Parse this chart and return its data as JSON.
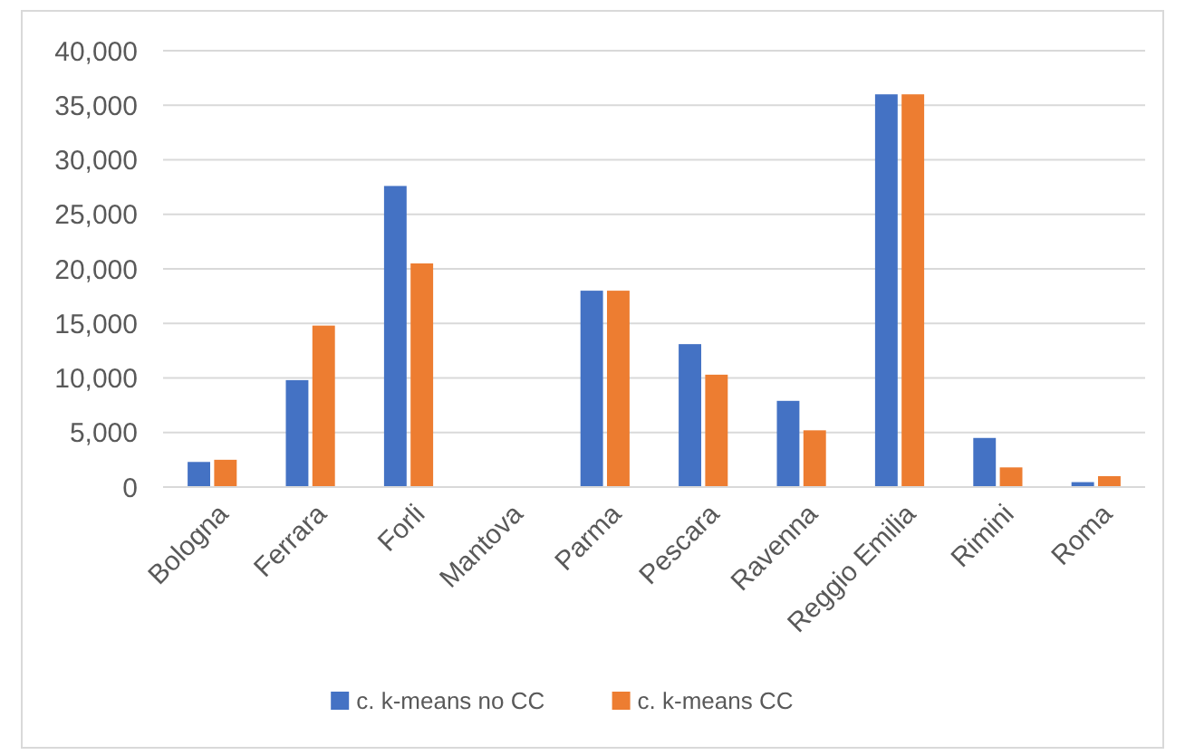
{
  "chart_data": {
    "type": "bar",
    "categories": [
      "Bologna",
      "Ferrara",
      "Forli",
      "Mantova",
      "Parma",
      "Pescara",
      "Ravenna",
      "Reggio Emilia",
      "Rimini",
      "Roma"
    ],
    "series": [
      {
        "name": "c. k-means no CC",
        "color": "#4472c4",
        "values": [
          2300,
          9800,
          27600,
          0,
          18000,
          13100,
          7900,
          36000,
          4500,
          450
        ]
      },
      {
        "name": "c. k-means CC",
        "color": "#ed7d31",
        "values": [
          2500,
          14800,
          20500,
          0,
          18000,
          10300,
          5200,
          36000,
          1800,
          1000
        ]
      }
    ],
    "ylim": [
      0,
      40000
    ],
    "yticks": [
      {
        "value": 0,
        "label": "0"
      },
      {
        "value": 5000,
        "label": "5,000"
      },
      {
        "value": 10000,
        "label": "10,000"
      },
      {
        "value": 15000,
        "label": "15,000"
      },
      {
        "value": 20000,
        "label": "20,000"
      },
      {
        "value": 25000,
        "label": "25,000"
      },
      {
        "value": 30000,
        "label": "30,000"
      },
      {
        "value": 35000,
        "label": "35,000"
      },
      {
        "value": 40000,
        "label": "40,000"
      }
    ],
    "grid": "y",
    "legend": "bottom"
  }
}
